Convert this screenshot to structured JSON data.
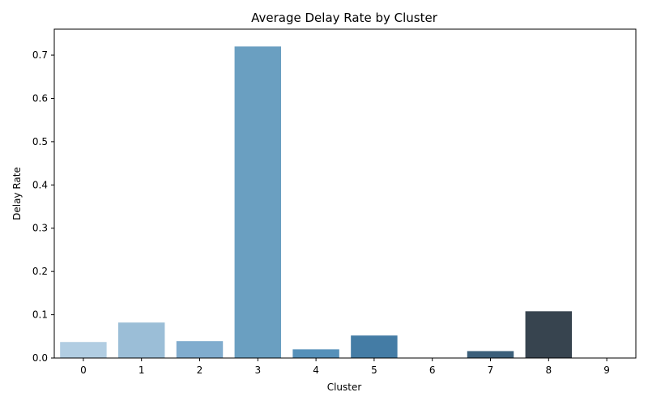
{
  "chart_data": {
    "type": "bar",
    "title": "Average Delay Rate by Cluster",
    "xlabel": "Cluster",
    "ylabel": "Delay Rate",
    "categories": [
      "0",
      "1",
      "2",
      "3",
      "4",
      "5",
      "6",
      "7",
      "8",
      "9"
    ],
    "values": [
      0.037,
      0.082,
      0.039,
      0.72,
      0.02,
      0.052,
      0.0,
      0.016,
      0.108,
      0.0
    ],
    "colors": [
      "#b1cde2",
      "#9bbed7",
      "#80acce",
      "#6a9fc1",
      "#5590b9",
      "#447ca5",
      "#3b6b8d",
      "#3c5f7a",
      "#37444f",
      "#2a3138"
    ],
    "ylim": [
      0,
      0.76
    ],
    "yticks": [
      0.0,
      0.1,
      0.2,
      0.3,
      0.4,
      0.5,
      0.6,
      0.7
    ],
    "ytick_labels": [
      "0.0",
      "0.1",
      "0.2",
      "0.3",
      "0.4",
      "0.5",
      "0.6",
      "0.7"
    ],
    "grid": false,
    "legend": "none"
  }
}
